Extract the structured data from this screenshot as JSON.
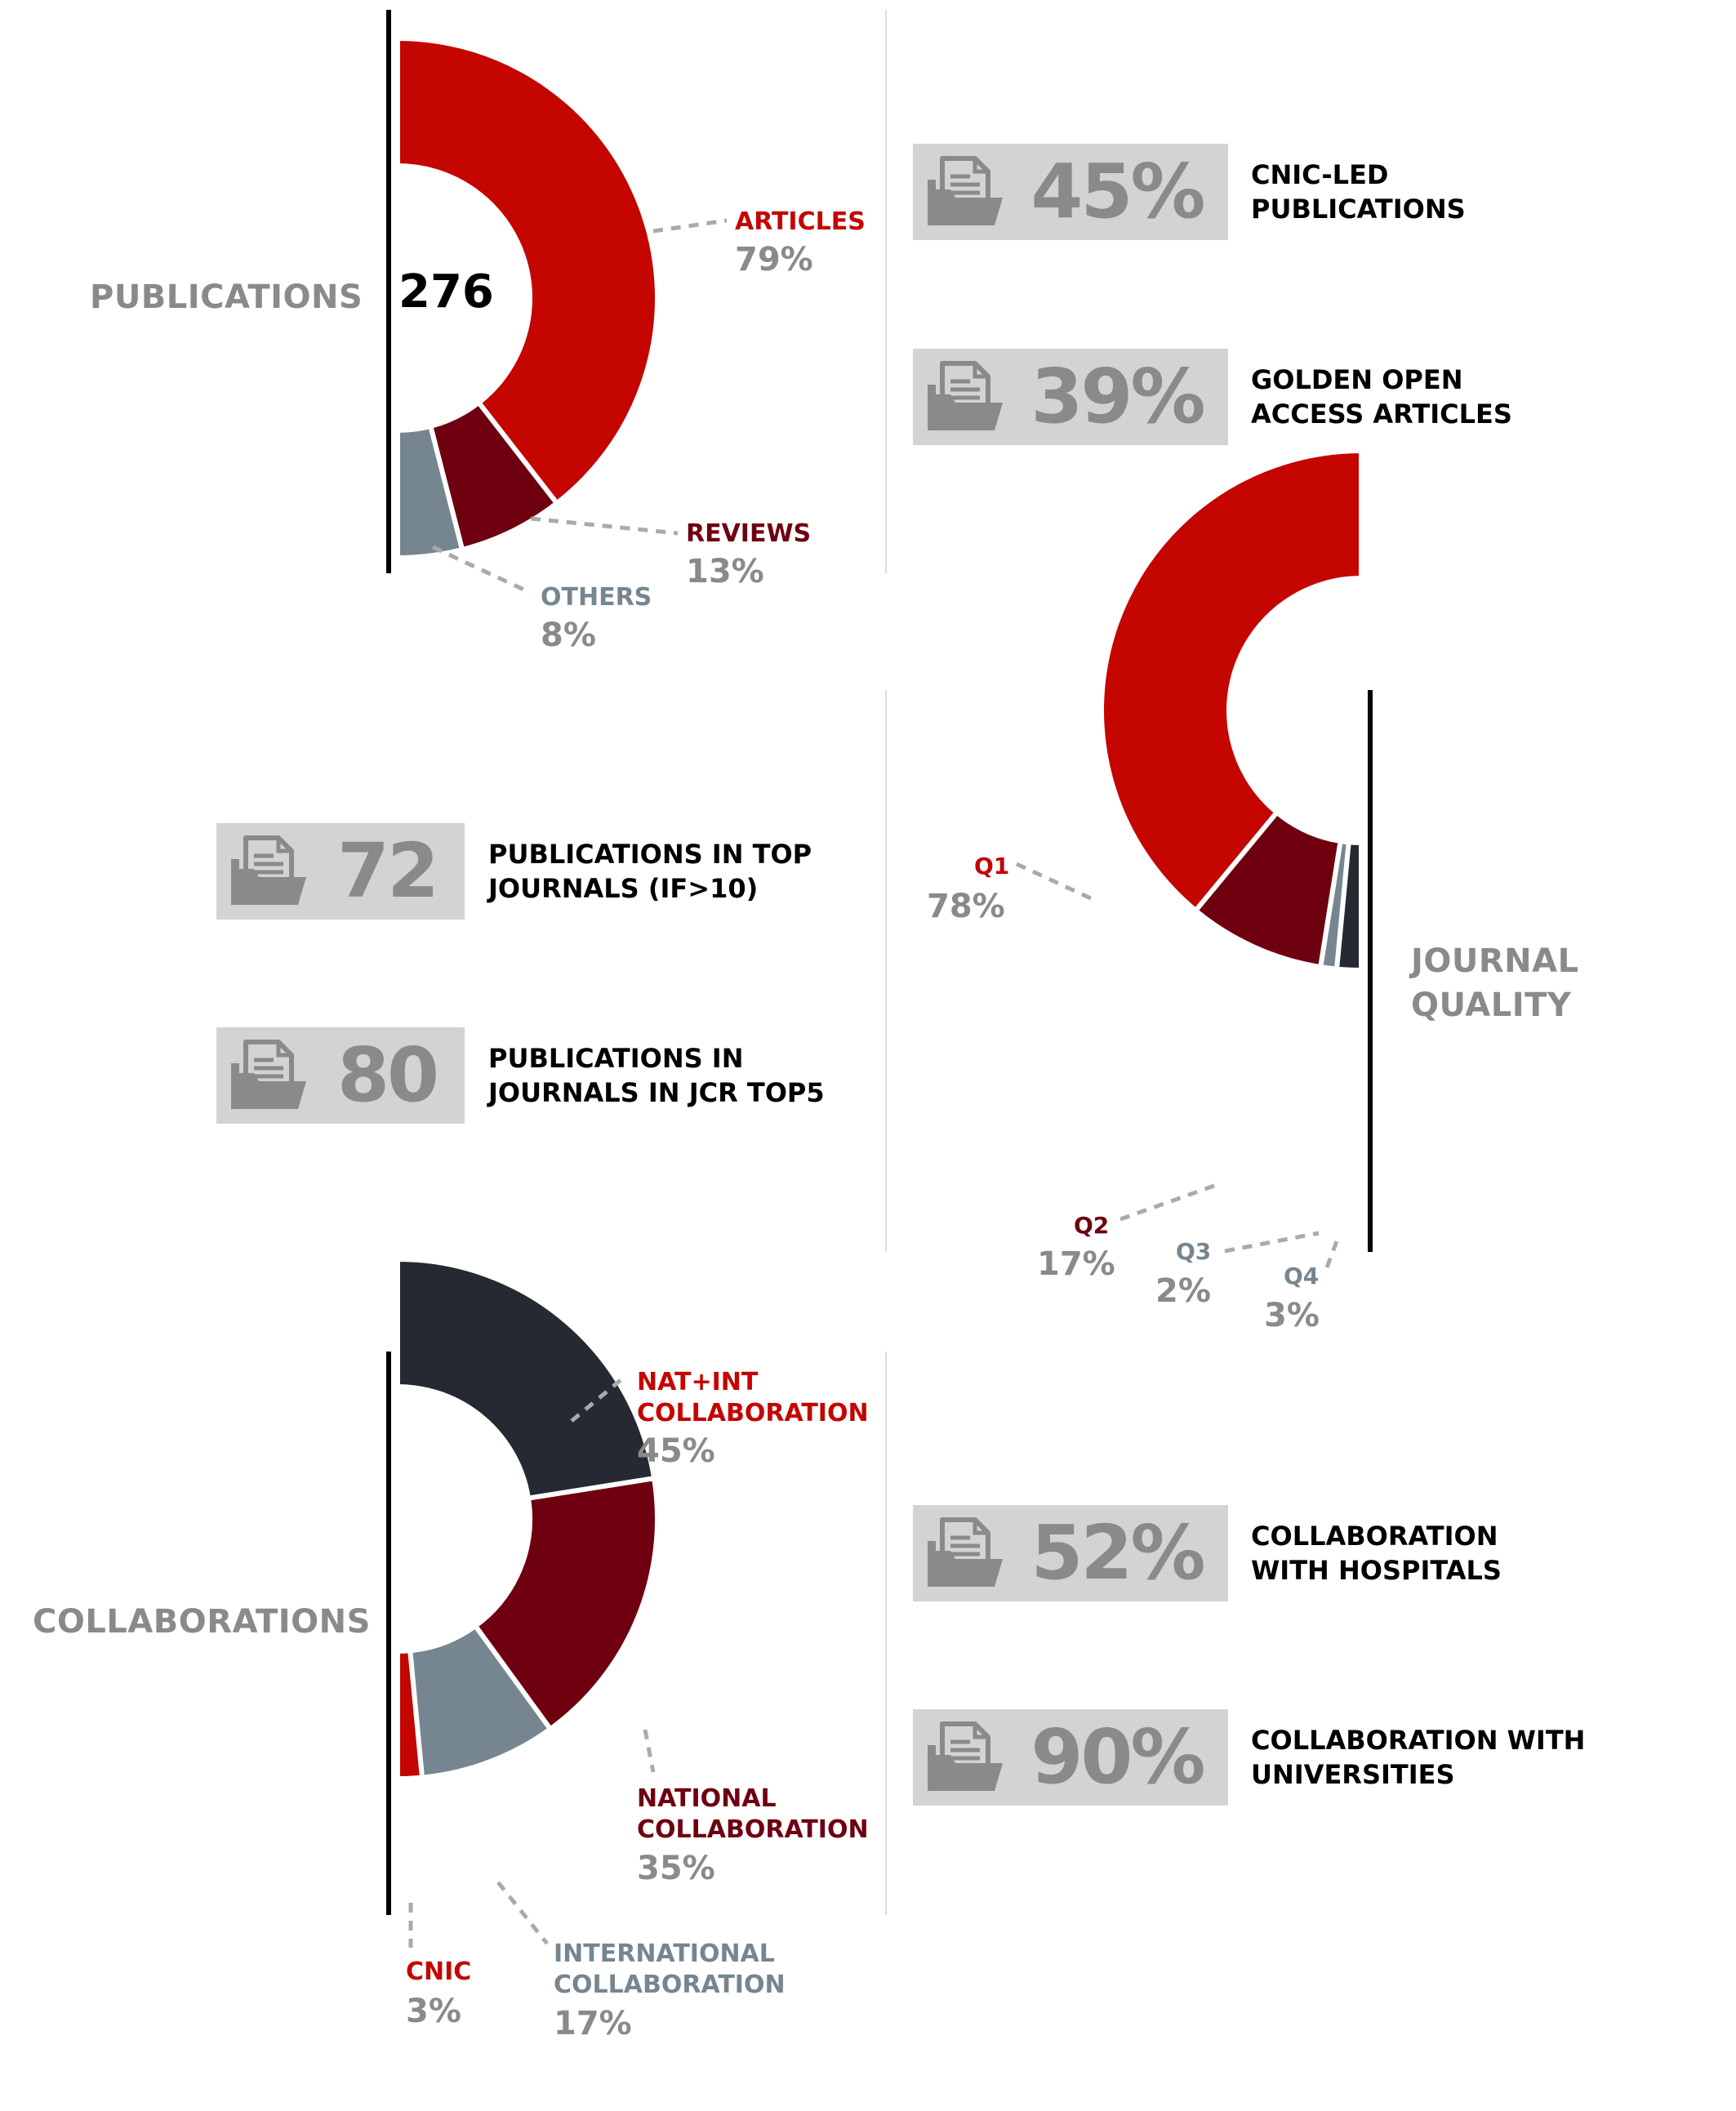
{
  "colors": {
    "red": "#c40500",
    "dark_red": "#6e0010",
    "slate": "#768690",
    "charcoal": "#252931",
    "gray_text": "#8a8a8a",
    "box_bg": "#d3d3d3"
  },
  "publications": {
    "title": "PUBLICATIONS",
    "total": "276",
    "labels": [
      {
        "name": "ARTICLES",
        "pct": "79%"
      },
      {
        "name": "REVIEWS",
        "pct": "13%"
      },
      {
        "name": "OTHERS",
        "pct": "8%"
      }
    ],
    "stats": [
      {
        "value": "45%",
        "text": "CNIC-LED\nPUBLICATIONS"
      },
      {
        "value": "39%",
        "text": "GOLDEN OPEN\nACCESS ARTICLES"
      }
    ]
  },
  "journal_quality": {
    "title": "JOURNAL\nQUALITY",
    "labels": [
      {
        "name": "Q1",
        "pct": "78%"
      },
      {
        "name": "Q2",
        "pct": "17%"
      },
      {
        "name": "Q3",
        "pct": "2%"
      },
      {
        "name": "Q4",
        "pct": "3%"
      }
    ],
    "stats": [
      {
        "value": "72",
        "text": "PUBLICATIONS IN TOP\nJOURNALS (IF>10)"
      },
      {
        "value": "80",
        "text": "PUBLICATIONS IN\nJOURNALS IN JCR TOP5"
      }
    ]
  },
  "collaborations": {
    "title": "COLLABORATIONS",
    "labels": [
      {
        "name": "NAT+INT\nCOLLABORATION",
        "pct": "45%"
      },
      {
        "name": "NATIONAL\nCOLLABORATION",
        "pct": "35%"
      },
      {
        "name": "INTERNATIONAL\nCOLLABORATION",
        "pct": "17%"
      },
      {
        "name": "CNIC",
        "pct": "3%"
      }
    ],
    "stats": [
      {
        "value": "52%",
        "text": "COLLABORATION\nWITH HOSPITALS"
      },
      {
        "value": "90%",
        "text": "COLLABORATION WITH\nUNIVERSITIES"
      }
    ]
  },
  "chart_data": [
    {
      "type": "pie",
      "title": "PUBLICATIONS",
      "total": 276,
      "categories": [
        "ARTICLES",
        "REVIEWS",
        "OTHERS"
      ],
      "values": [
        79,
        13,
        8
      ],
      "colors": [
        "#c40500",
        "#6e0010",
        "#768690"
      ]
    },
    {
      "type": "pie",
      "title": "JOURNAL QUALITY",
      "categories": [
        "Q1",
        "Q2",
        "Q3",
        "Q4"
      ],
      "values": [
        78,
        17,
        2,
        3
      ],
      "colors": [
        "#c40500",
        "#6e0010",
        "#768690",
        "#252931"
      ]
    },
    {
      "type": "pie",
      "title": "COLLABORATIONS",
      "categories": [
        "NAT+INT COLLABORATION",
        "NATIONAL COLLABORATION",
        "INTERNATIONAL COLLABORATION",
        "CNIC"
      ],
      "values": [
        45,
        35,
        17,
        3
      ],
      "colors": [
        "#252931",
        "#6e0010",
        "#768690",
        "#c40500"
      ]
    }
  ]
}
